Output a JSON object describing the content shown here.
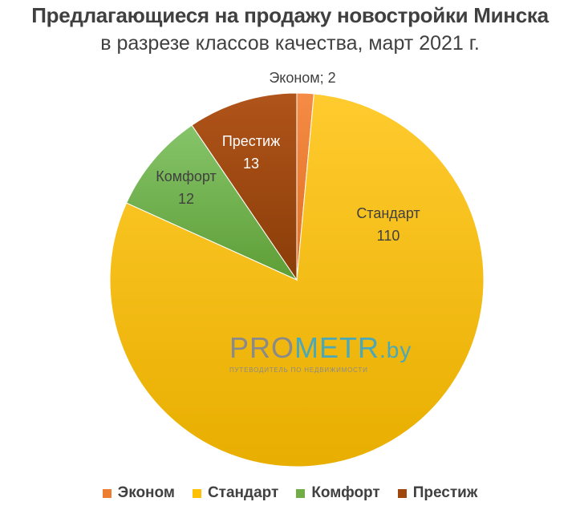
{
  "chart_data": {
    "type": "pie",
    "title": "Предлагающиеся на продажу новостройки Минска",
    "subtitle": "в разрезе классов качества, март 2021 г.",
    "slices": [
      {
        "name": "Эконом",
        "value": 2,
        "color": "#ED7D31",
        "label_text": "Эконом; 2"
      },
      {
        "name": "Стандарт",
        "value": 110,
        "color": "#FFC000",
        "label_name": "Стандарт",
        "label_value": "110"
      },
      {
        "name": "Комфорт",
        "value": 12,
        "color": "#70AD47",
        "label_name": "Комфорт",
        "label_value": "12"
      },
      {
        "name": "Престиж",
        "value": 13,
        "color": "#9E480E",
        "label_name": "Престиж",
        "label_value": "13"
      }
    ],
    "legend": {
      "placement": "bottom",
      "items": [
        "Эконом",
        "Стандарт",
        "Комфорт",
        "Престиж"
      ]
    }
  },
  "watermark": {
    "pro": "PRO",
    "metr": "METR",
    "by": ".by",
    "tagline": "ПУТЕВОДИТЕЛЬ ПО НЕДВИЖИМОСТИ"
  }
}
